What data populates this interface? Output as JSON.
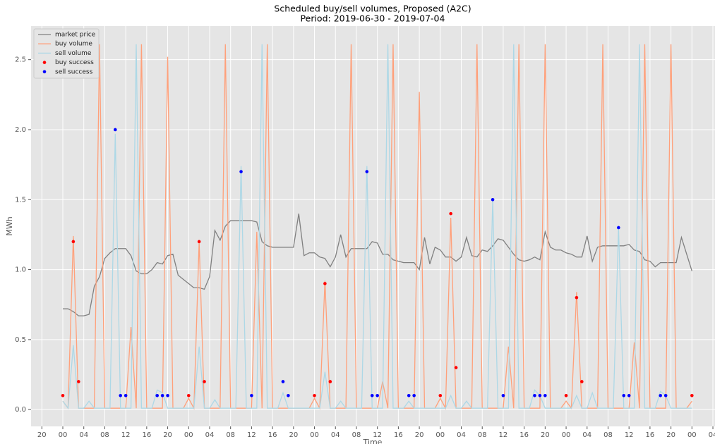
{
  "chart_data": {
    "type": "line",
    "title": "Scheduled buy/sell volumes, Proposed (A2C)",
    "subtitle": "Period: 2019-06-30 - 2019-07-04",
    "xlabel": "Time",
    "ylabel": "MWh",
    "grid": true,
    "legend": "upper left",
    "xlim": [
      -6.06,
      124.4
    ],
    "ylim": [
      -0.12,
      2.74
    ],
    "yticks": [
      {
        "value": 0,
        "label": "0.0"
      },
      {
        "value": 0.5,
        "label": "0.5"
      },
      {
        "value": 1,
        "label": "1.0"
      },
      {
        "value": 1.5,
        "label": "1.5"
      },
      {
        "value": 2,
        "label": "2.0"
      },
      {
        "value": 2.5,
        "label": "2.5"
      }
    ],
    "xticks": [
      {
        "value": -4,
        "label": "20"
      },
      {
        "value": 0,
        "label": "00"
      },
      {
        "value": 4,
        "label": "04"
      },
      {
        "value": 8,
        "label": "08"
      },
      {
        "value": 12,
        "label": "12"
      },
      {
        "value": 16,
        "label": "16"
      },
      {
        "value": 20,
        "label": "20"
      },
      {
        "value": 24,
        "label": "00"
      },
      {
        "value": 28,
        "label": "04"
      },
      {
        "value": 32,
        "label": "08"
      },
      {
        "value": 36,
        "label": "12"
      },
      {
        "value": 40,
        "label": "16"
      },
      {
        "value": 44,
        "label": "20"
      },
      {
        "value": 48,
        "label": "00"
      },
      {
        "value": 52,
        "label": "04"
      },
      {
        "value": 56,
        "label": "08"
      },
      {
        "value": 60,
        "label": "12"
      },
      {
        "value": 64,
        "label": "16"
      },
      {
        "value": 68,
        "label": "20"
      },
      {
        "value": 72,
        "label": "00"
      },
      {
        "value": 76,
        "label": "04"
      },
      {
        "value": 80,
        "label": "08"
      },
      {
        "value": 84,
        "label": "12"
      },
      {
        "value": 88,
        "label": "16"
      },
      {
        "value": 92,
        "label": "20"
      },
      {
        "value": 96,
        "label": "00"
      },
      {
        "value": 100,
        "label": "04"
      },
      {
        "value": 104,
        "label": "08"
      },
      {
        "value": 108,
        "label": "12"
      },
      {
        "value": 112,
        "label": "16"
      },
      {
        "value": 116,
        "label": "20"
      },
      {
        "value": 120,
        "label": "00"
      },
      {
        "value": 124,
        "label": "04"
      }
    ],
    "x": [
      0,
      1,
      2,
      3,
      4,
      5,
      6,
      7,
      8,
      9,
      10,
      11,
      12,
      13,
      14,
      15,
      16,
      17,
      18,
      19,
      20,
      21,
      22,
      23,
      24,
      25,
      26,
      27,
      28,
      29,
      30,
      31,
      32,
      33,
      34,
      35,
      36,
      37,
      38,
      39,
      40,
      41,
      42,
      43,
      44,
      45,
      46,
      47,
      48,
      49,
      50,
      51,
      52,
      53,
      54,
      55,
      56,
      57,
      58,
      59,
      60,
      61,
      62,
      63,
      64,
      65,
      66,
      67,
      68,
      69,
      70,
      71,
      72,
      73,
      74,
      75,
      76,
      77,
      78,
      79,
      80,
      81,
      82,
      83,
      84,
      85,
      86,
      87,
      88,
      89,
      90,
      91,
      92,
      93,
      94,
      95,
      96,
      97,
      98,
      99,
      100,
      101,
      102,
      103,
      104,
      105,
      106,
      107,
      108,
      109,
      110,
      111,
      112,
      113,
      114,
      115,
      116,
      117,
      118,
      119,
      120
    ],
    "series": [
      {
        "name": "market price",
        "type": "line",
        "color": "#808080",
        "values": [
          0.72,
          0.72,
          0.7,
          0.67,
          0.67,
          0.68,
          0.88,
          0.95,
          1.08,
          1.12,
          1.15,
          1.15,
          1.15,
          1.1,
          0.99,
          0.97,
          0.97,
          1.0,
          1.05,
          1.04,
          1.1,
          1.11,
          0.96,
          0.93,
          0.9,
          0.87,
          0.87,
          0.86,
          0.95,
          1.28,
          1.21,
          1.31,
          1.35,
          1.35,
          1.35,
          1.35,
          1.35,
          1.34,
          1.2,
          1.17,
          1.16,
          1.16,
          1.16,
          1.16,
          1.16,
          1.4,
          1.1,
          1.12,
          1.12,
          1.09,
          1.08,
          1.02,
          1.09,
          1.25,
          1.09,
          1.15,
          1.15,
          1.15,
          1.15,
          1.2,
          1.19,
          1.11,
          1.11,
          1.07,
          1.06,
          1.05,
          1.05,
          1.05,
          1.0,
          1.23,
          1.04,
          1.16,
          1.14,
          1.09,
          1.09,
          1.06,
          1.09,
          1.23,
          1.1,
          1.09,
          1.14,
          1.13,
          1.17,
          1.22,
          1.21,
          1.16,
          1.11,
          1.07,
          1.06,
          1.07,
          1.09,
          1.07,
          1.27,
          1.16,
          1.14,
          1.14,
          1.12,
          1.11,
          1.09,
          1.09,
          1.24,
          1.06,
          1.16,
          1.17,
          1.17,
          1.17,
          1.17,
          1.17,
          1.18,
          1.14,
          1.13,
          1.07,
          1.06,
          1.02,
          1.05,
          1.05,
          1.05,
          1.05,
          1.23,
          1.11,
          0.99
        ]
      },
      {
        "name": "buy volume",
        "type": "line",
        "color": "#ffa07a",
        "values": [
          0.06,
          0.01,
          1.24,
          0.01,
          0.01,
          0.01,
          0.01,
          2.61,
          0.01,
          0.01,
          0.01,
          0.01,
          0.01,
          0.59,
          0.01,
          2.61,
          0.01,
          0.01,
          0.01,
          0.01,
          2.52,
          0.01,
          0.01,
          0.01,
          0.08,
          0.01,
          1.2,
          0.01,
          0.01,
          0.01,
          0.01,
          2.61,
          0.01,
          0.01,
          0.01,
          0.01,
          0.01,
          1.27,
          0.01,
          2.61,
          0.01,
          0.01,
          0.01,
          0.01,
          0.01,
          0.01,
          0.01,
          0.01,
          0.08,
          0.01,
          0.92,
          0.01,
          0.01,
          0.01,
          0.01,
          2.61,
          0.01,
          0.01,
          0.01,
          0.01,
          0.01,
          0.2,
          0.01,
          2.61,
          0.01,
          0.01,
          0.01,
          0.01,
          2.27,
          0.01,
          0.01,
          0.01,
          0.08,
          0.01,
          1.37,
          0.01,
          0.01,
          0.01,
          0.01,
          2.61,
          0.01,
          0.01,
          0.01,
          0.01,
          0.01,
          0.45,
          0.01,
          2.61,
          0.01,
          0.01,
          0.01,
          0.01,
          2.61,
          0.01,
          0.01,
          0.01,
          0.06,
          0.01,
          0.84,
          0.01,
          0.01,
          0.01,
          0.01,
          2.61,
          0.01,
          0.01,
          0.01,
          0.01,
          0.01,
          0.48,
          0.01,
          2.61,
          0.01,
          0.01,
          0.01,
          0.01,
          2.61,
          0.01,
          0.01,
          0.01,
          0.06
        ]
      },
      {
        "name": "sell volume",
        "type": "line",
        "color": "#add8e6",
        "values": [
          0.06,
          0.01,
          0.46,
          0.01,
          0.01,
          0.06,
          0.01,
          0.01,
          0.01,
          0.01,
          1.97,
          0.01,
          0.01,
          0.01,
          2.61,
          0.01,
          0.01,
          0.01,
          0.14,
          0.12,
          0.01,
          0.01,
          0.01,
          0.01,
          0.01,
          0.01,
          0.45,
          0.01,
          0.01,
          0.07,
          0.01,
          0.01,
          0.01,
          0.01,
          1.74,
          0.01,
          0.01,
          0.01,
          2.61,
          0.01,
          0.01,
          0.01,
          0.12,
          0.01,
          0.01,
          0.01,
          0.01,
          0.01,
          0.01,
          0.01,
          0.27,
          0.01,
          0.01,
          0.06,
          0.01,
          0.01,
          0.01,
          0.01,
          1.74,
          0.01,
          0.01,
          0.01,
          2.61,
          0.01,
          0.01,
          0.01,
          0.06,
          0.01,
          0.01,
          0.01,
          0.01,
          0.01,
          0.01,
          0.01,
          0.1,
          0.01,
          0.01,
          0.06,
          0.01,
          0.01,
          0.01,
          0.01,
          1.5,
          0.01,
          0.01,
          0.01,
          2.61,
          0.01,
          0.01,
          0.01,
          0.14,
          0.1,
          0.01,
          0.01,
          0.01,
          0.01,
          0.01,
          0.01,
          0.1,
          0.01,
          0.01,
          0.12,
          0.01,
          0.01,
          0.01,
          0.01,
          1.3,
          0.01,
          0.01,
          0.01,
          2.61,
          0.01,
          0.01,
          0.01,
          0.13,
          0.1,
          0.01,
          0.01,
          0.01,
          0.01,
          0.01
        ]
      },
      {
        "name": "buy success",
        "type": "scatter",
        "color": "#ff0000",
        "x": [
          0,
          2,
          3,
          24,
          26,
          27,
          48,
          50,
          51,
          72,
          74,
          75,
          96,
          98,
          99,
          120
        ],
        "values": [
          0.1,
          1.2,
          0.2,
          0.1,
          1.2,
          0.2,
          0.1,
          0.9,
          0.2,
          0.1,
          1.4,
          0.3,
          0.1,
          0.8,
          0.2,
          0.1
        ]
      },
      {
        "name": "sell success",
        "type": "scatter",
        "color": "#0000ff",
        "x": [
          10,
          11,
          12,
          18,
          19,
          20,
          34,
          36,
          42,
          43,
          58,
          59,
          60,
          66,
          67,
          82,
          84,
          90,
          91,
          92,
          106,
          107,
          108,
          114,
          115
        ],
        "values": [
          2.0,
          0.1,
          0.1,
          0.1,
          0.1,
          0.1,
          1.7,
          0.1,
          0.2,
          0.1,
          1.7,
          0.1,
          0.1,
          0.1,
          0.1,
          1.5,
          0.1,
          0.1,
          0.1,
          0.1,
          1.3,
          0.1,
          0.1,
          0.1,
          0.1
        ]
      }
    ]
  }
}
